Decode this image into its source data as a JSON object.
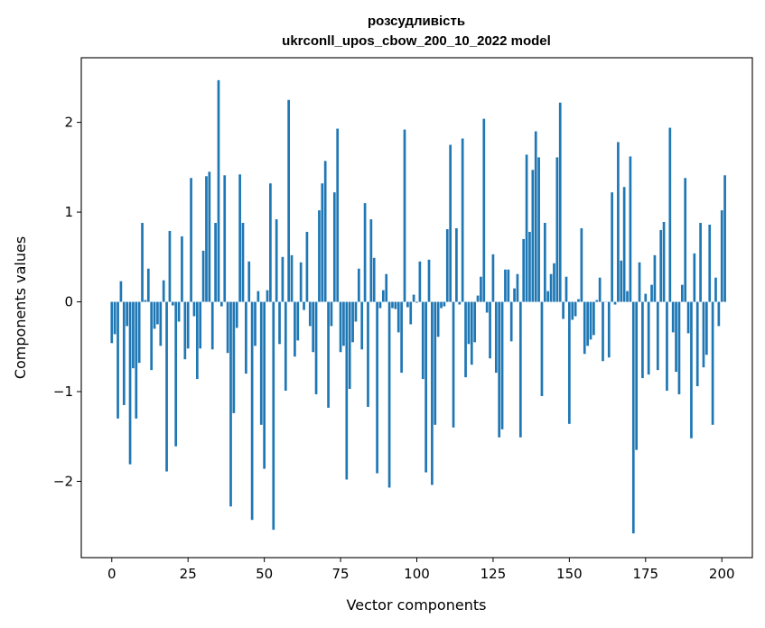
{
  "chart_data": {
    "type": "bar",
    "title_line1": "розсудливість",
    "title_line2": "ukrconll_upos_cbow_200_10_2022 model",
    "xlabel": "Vector components",
    "ylabel": "Components values",
    "xlim": [
      -10,
      210
    ],
    "ylim": [
      -2.85,
      2.72
    ],
    "xticks": [
      0,
      25,
      50,
      75,
      100,
      125,
      150,
      175,
      200
    ],
    "xtick_labels": [
      "0",
      "25",
      "50",
      "75",
      "100",
      "125",
      "150",
      "175",
      "200"
    ],
    "yticks": [
      -2,
      -1,
      0,
      1,
      2
    ],
    "ytick_labels": [
      "−2",
      "−1",
      "0",
      "1",
      "2"
    ],
    "bar_color": "#1f77b4",
    "values": [
      -0.46,
      -0.36,
      -1.3,
      0.23,
      -1.15,
      -0.27,
      -1.81,
      -0.74,
      -1.3,
      -0.68,
      0.88,
      0.02,
      0.37,
      -0.76,
      -0.3,
      -0.25,
      -0.49,
      0.24,
      -1.89,
      0.79,
      -0.04,
      -1.61,
      -0.22,
      0.73,
      -0.64,
      -0.52,
      1.38,
      -0.16,
      -0.86,
      -0.52,
      0.57,
      1.4,
      1.45,
      -0.53,
      0.88,
      2.47,
      -0.05,
      1.41,
      -0.57,
      -2.28,
      -1.24,
      -0.29,
      1.42,
      0.88,
      -0.8,
      0.45,
      -2.43,
      -0.49,
      0.12,
      -1.37,
      -1.86,
      0.13,
      1.32,
      -2.54,
      0.92,
      -0.47,
      0.5,
      -0.99,
      2.25,
      0.52,
      -0.61,
      -0.43,
      0.44,
      -0.09,
      0.78,
      -0.27,
      -0.56,
      -1.03,
      1.02,
      1.32,
      1.57,
      -1.18,
      -0.27,
      1.22,
      1.93,
      -0.56,
      -0.49,
      -1.98,
      -0.97,
      -0.45,
      -0.22,
      0.37,
      -0.53,
      1.1,
      -1.17,
      0.92,
      0.49,
      -1.91,
      -0.07,
      0.13,
      0.31,
      -2.07,
      -0.07,
      -0.08,
      -0.34,
      -0.79,
      1.92,
      -0.06,
      -0.25,
      0.08,
      -0.01,
      0.45,
      -0.86,
      -1.9,
      0.47,
      -2.04,
      -1.37,
      -0.39,
      -0.07,
      -0.05,
      0.81,
      1.75,
      -1.4,
      0.82,
      -0.03,
      1.82,
      -0.84,
      -0.47,
      -0.7,
      -0.45,
      0.07,
      0.28,
      2.04,
      -0.12,
      -0.63,
      0.53,
      -0.79,
      -1.51,
      -1.42,
      0.36,
      0.36,
      -0.44,
      0.15,
      0.31,
      -1.51,
      0.7,
      1.64,
      0.78,
      1.47,
      1.9,
      1.61,
      -1.05,
      0.88,
      0.12,
      0.31,
      0.43,
      1.61,
      2.22,
      -0.19,
      0.28,
      -1.36,
      -0.2,
      -0.16,
      0.03,
      0.82,
      -0.58,
      -0.49,
      -0.42,
      -0.37,
      0.02,
      0.27,
      -0.66,
      0.0,
      -0.62,
      1.22,
      -0.03,
      1.78,
      0.46,
      1.28,
      0.12,
      1.62,
      -2.58,
      -1.65,
      0.44,
      -0.85,
      0.09,
      -0.81,
      0.19,
      0.52,
      -0.76,
      0.8,
      0.89,
      -0.99,
      1.94,
      -0.34,
      -0.78,
      -1.03,
      0.19,
      1.38,
      -0.35,
      -1.52,
      0.54,
      -0.94,
      0.88,
      -0.73,
      -0.59,
      0.86,
      -1.37,
      0.27,
      -0.27,
      1.02,
      1.41
    ]
  }
}
